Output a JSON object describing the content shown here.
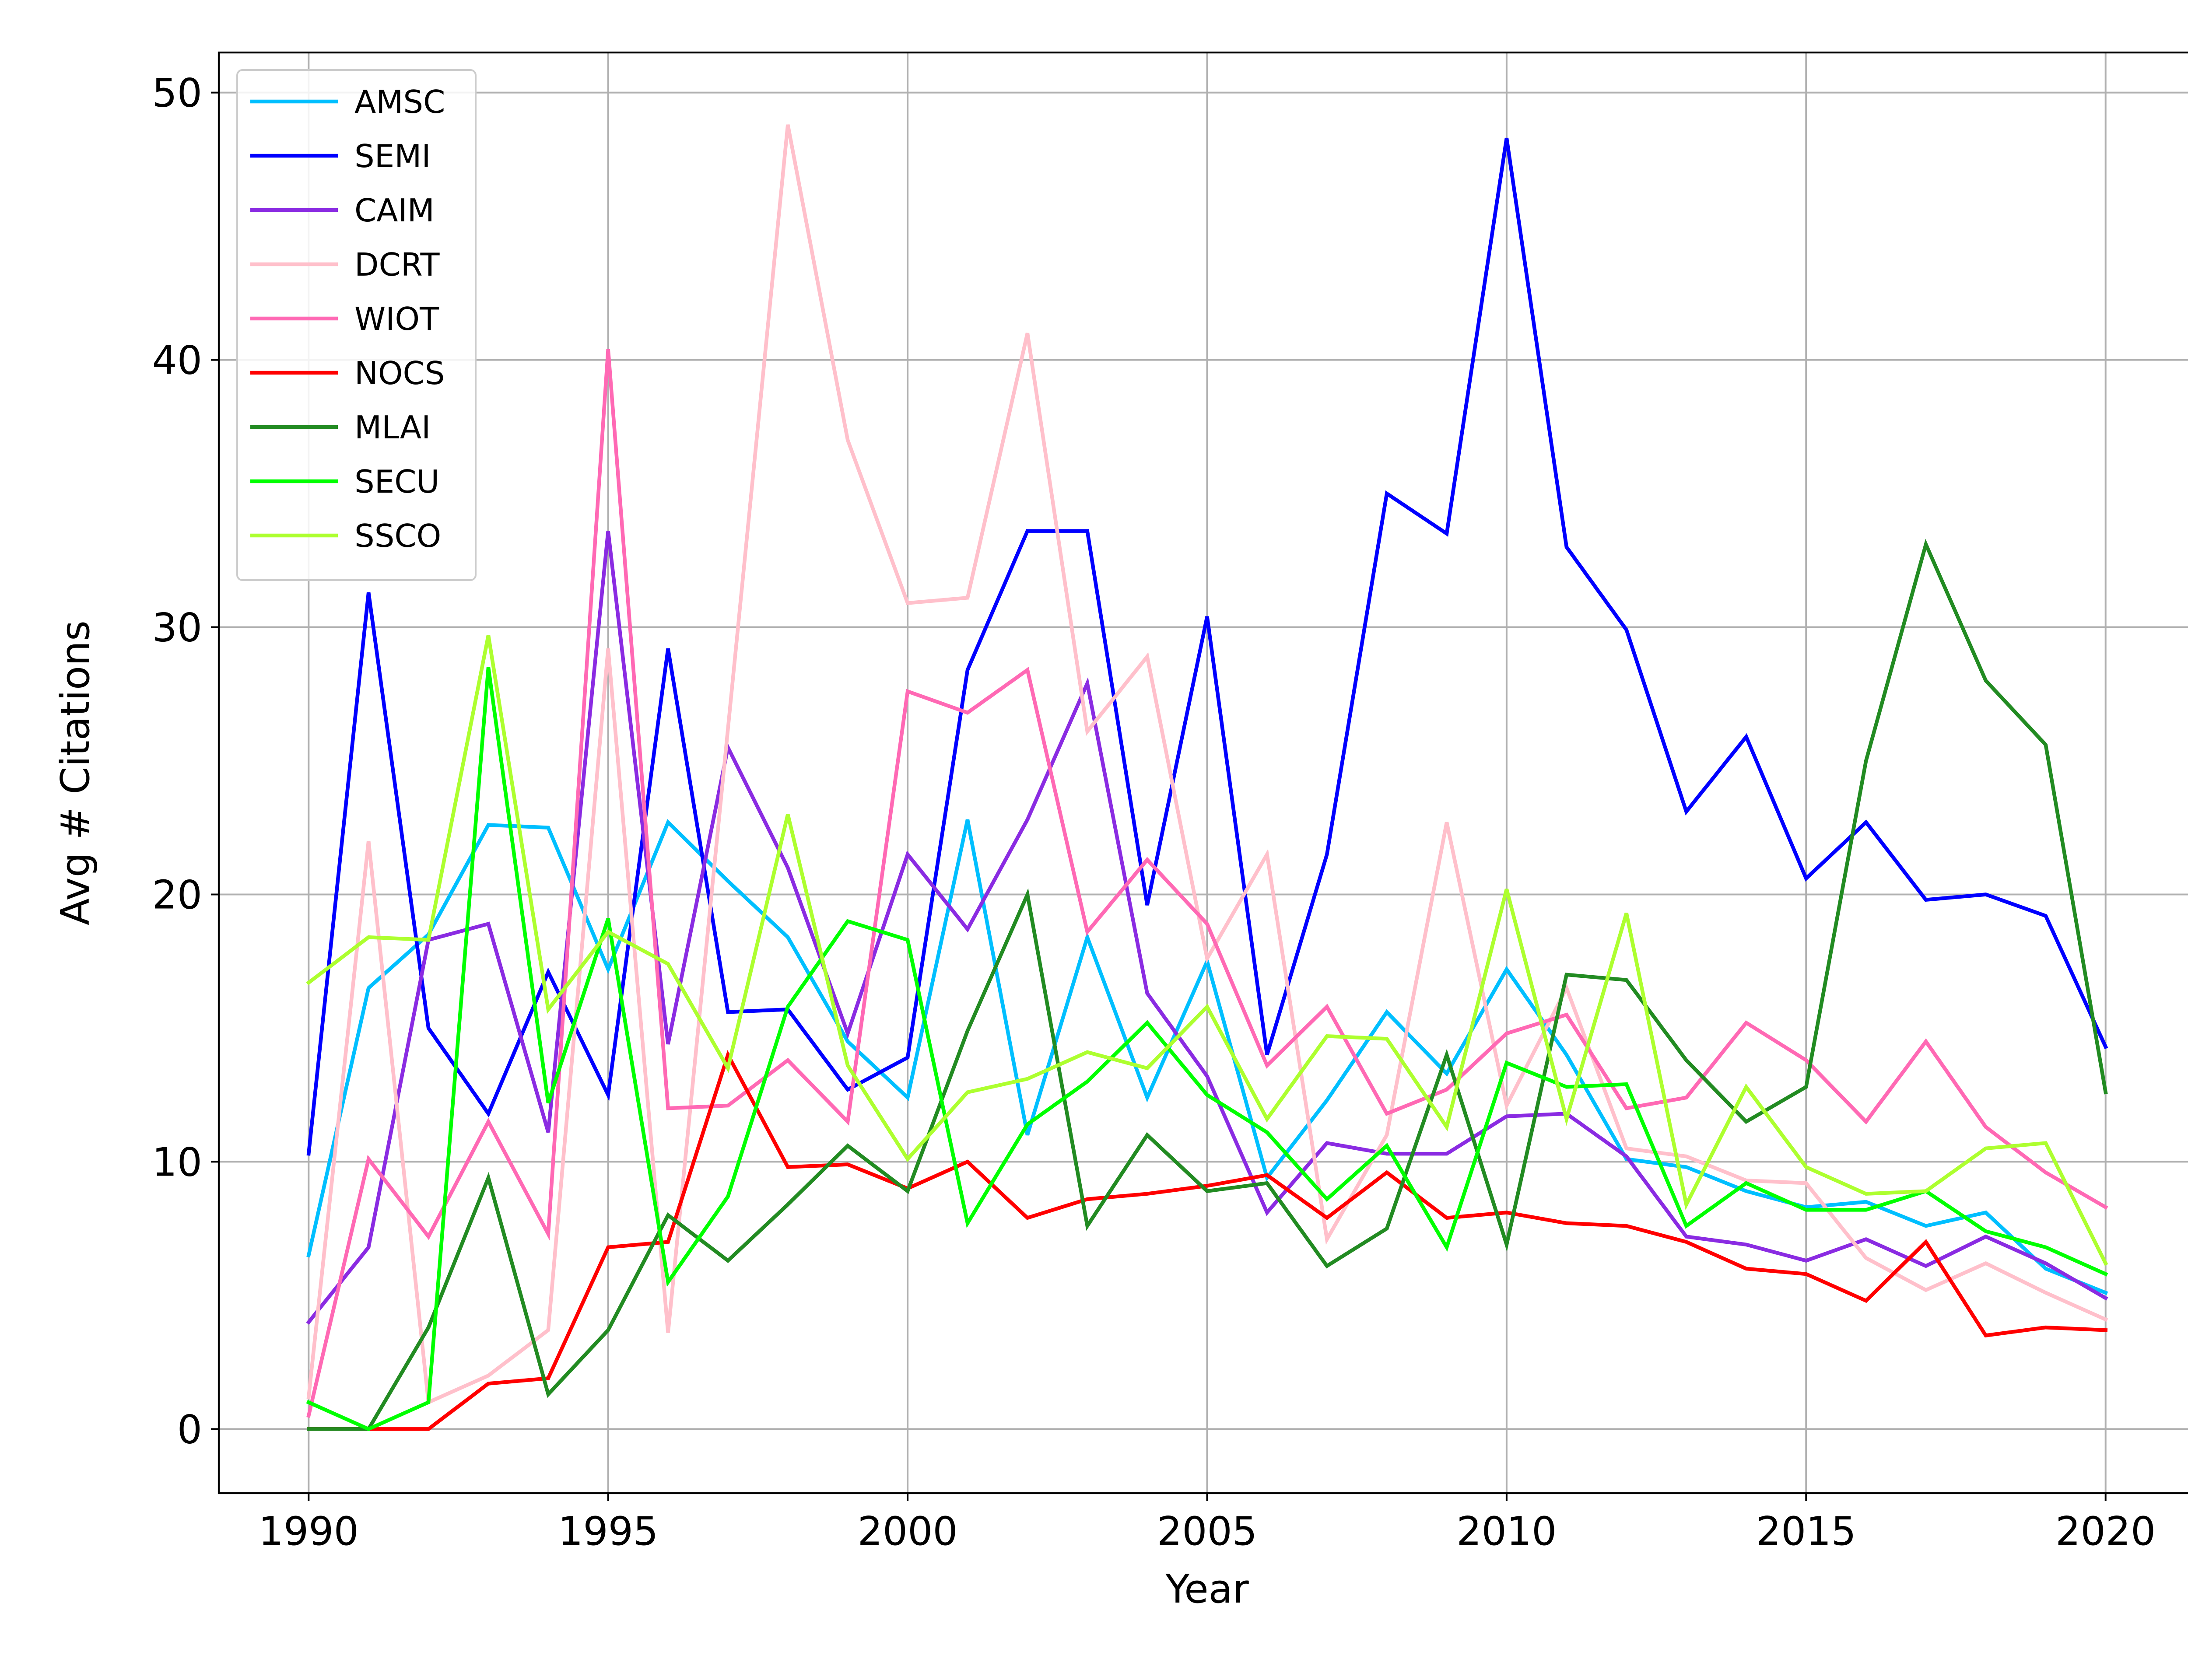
{
  "chart_data": {
    "type": "line",
    "title": "",
    "xlabel": "Year",
    "ylabel": "Avg # Citations",
    "xlim": [
      1988.5,
      2021.5
    ],
    "ylim": [
      -2.4,
      51.5
    ],
    "xticks": [
      1990,
      1995,
      2000,
      2005,
      2010,
      2015,
      2020
    ],
    "yticks": [
      0,
      10,
      20,
      30,
      40,
      50
    ],
    "grid": true,
    "legend_position": "top-left",
    "x": [
      1990,
      1991,
      1992,
      1993,
      1994,
      1995,
      1996,
      1997,
      1998,
      1999,
      2000,
      2001,
      2002,
      2003,
      2004,
      2005,
      2006,
      2007,
      2008,
      2009,
      2010,
      2011,
      2012,
      2013,
      2014,
      2015,
      2016,
      2017,
      2018,
      2019,
      2020
    ],
    "series": [
      {
        "name": "AMSC",
        "color": "#00bfff",
        "values": [
          6.5,
          16.5,
          18.5,
          22.6,
          22.5,
          17.2,
          22.7,
          20.5,
          18.4,
          14.5,
          12.4,
          22.8,
          11.0,
          18.4,
          12.4,
          17.5,
          9.4,
          12.3,
          15.6,
          13.3,
          17.2,
          14.0,
          10.1,
          9.8,
          8.9,
          8.3,
          8.5,
          7.6,
          8.1,
          6.0,
          5.1
        ]
      },
      {
        "name": "SEMI",
        "color": "#0000ff",
        "values": [
          10.3,
          31.3,
          15.0,
          11.8,
          17.1,
          12.5,
          29.2,
          15.6,
          15.7,
          12.7,
          13.9,
          28.4,
          33.6,
          33.6,
          19.6,
          30.4,
          14.0,
          21.5,
          35.0,
          33.5,
          48.3,
          33.0,
          29.9,
          23.1,
          25.9,
          20.6,
          22.7,
          19.8,
          20.0,
          19.2,
          14.3
        ]
      },
      {
        "name": "CAIM",
        "color": "#8a2be2",
        "values": [
          4.0,
          6.8,
          18.3,
          18.9,
          11.1,
          33.6,
          14.4,
          25.5,
          21.0,
          14.8,
          21.5,
          18.7,
          22.8,
          27.9,
          16.3,
          13.2,
          8.1,
          10.7,
          10.3,
          10.3,
          11.7,
          11.8,
          10.2,
          7.2,
          6.9,
          6.3,
          7.1,
          6.1,
          7.2,
          6.2,
          4.9
        ]
      },
      {
        "name": "DCRT",
        "color": "#ffc0cb",
        "values": [
          1.2,
          22.0,
          1.0,
          2.0,
          3.7,
          29.2,
          3.6,
          26.2,
          48.8,
          37.0,
          30.9,
          31.1,
          41.0,
          26.1,
          28.9,
          17.6,
          21.5,
          7.1,
          11.0,
          22.7,
          12.1,
          16.5,
          10.5,
          10.2,
          9.3,
          9.2,
          6.4,
          5.2,
          6.2,
          5.1,
          4.1
        ]
      },
      {
        "name": "WIOT",
        "color": "#ff69b4",
        "values": [
          0.5,
          10.1,
          7.2,
          11.5,
          7.3,
          40.4,
          12.0,
          12.1,
          13.8,
          11.5,
          27.6,
          26.8,
          28.4,
          18.6,
          21.3,
          18.9,
          13.6,
          15.8,
          11.8,
          12.7,
          14.8,
          15.5,
          12.0,
          12.4,
          15.2,
          13.8,
          11.5,
          14.5,
          11.3,
          9.6,
          8.3
        ]
      },
      {
        "name": "NOCS",
        "color": "#ff0000",
        "values": [
          0.0,
          0.0,
          0.0,
          1.7,
          1.9,
          6.8,
          7.0,
          14.0,
          9.8,
          9.9,
          9.0,
          10.0,
          7.9,
          8.6,
          8.8,
          9.1,
          9.5,
          7.9,
          9.6,
          7.9,
          8.1,
          7.7,
          7.6,
          7.0,
          6.0,
          5.8,
          4.8,
          7.0,
          3.5,
          3.8,
          3.7
        ]
      },
      {
        "name": "MLAI",
        "color": "#228b22",
        "values": [
          0.0,
          0.0,
          3.8,
          9.4,
          1.3,
          3.7,
          8.0,
          6.3,
          8.4,
          10.6,
          8.9,
          14.9,
          20.0,
          7.6,
          11.0,
          8.9,
          9.2,
          6.1,
          7.5,
          14.0,
          6.9,
          17.0,
          16.8,
          13.8,
          11.5,
          12.8,
          25.0,
          33.1,
          28.0,
          25.6,
          12.6
        ]
      },
      {
        "name": "SECU",
        "color": "#00ff00",
        "values": [
          1.0,
          0.0,
          1.0,
          28.5,
          12.2,
          19.1,
          5.5,
          8.7,
          15.8,
          19.0,
          18.3,
          7.7,
          11.4,
          13.0,
          15.2,
          12.5,
          11.1,
          8.6,
          10.6,
          6.8,
          13.7,
          12.8,
          12.9,
          7.6,
          9.2,
          8.2,
          8.2,
          8.9,
          7.4,
          6.8,
          5.8
        ]
      },
      {
        "name": "SSCO",
        "color": "#adff2f",
        "values": [
          16.7,
          18.4,
          18.3,
          29.7,
          15.7,
          18.6,
          17.4,
          13.5,
          23.0,
          13.6,
          10.1,
          12.6,
          13.1,
          14.1,
          13.5,
          15.8,
          11.6,
          14.7,
          14.6,
          11.3,
          20.2,
          11.6,
          19.3,
          8.4,
          12.8,
          9.8,
          8.8,
          8.9,
          10.5,
          10.7,
          6.2
        ]
      }
    ]
  }
}
